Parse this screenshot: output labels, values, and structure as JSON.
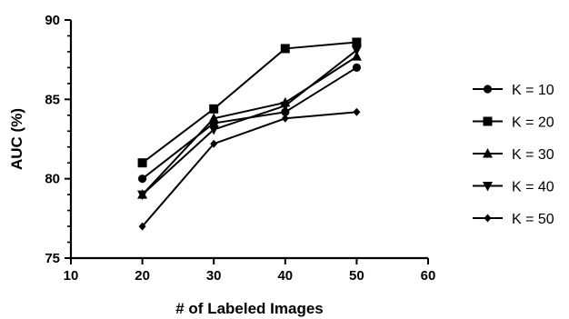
{
  "chart_data": {
    "type": "line",
    "xlabel": "# of Labeled Images",
    "ylabel": "AUC (%)",
    "xlim": [
      10,
      60
    ],
    "ylim": [
      75,
      90
    ],
    "xticks": [
      "10",
      "20",
      "30",
      "40",
      "50",
      "60"
    ],
    "yticks": [
      "75",
      "80",
      "85",
      "90"
    ],
    "x": [
      20,
      30,
      40,
      50
    ],
    "grid": false,
    "legend_position": "right",
    "series": [
      {
        "name": "K = 10",
        "marker": "circle",
        "values": [
          80.0,
          83.5,
          84.2,
          87.0
        ]
      },
      {
        "name": "K = 20",
        "marker": "square",
        "values": [
          81.0,
          84.4,
          88.2,
          88.6
        ]
      },
      {
        "name": "K = 30",
        "marker": "triangle-up",
        "values": [
          79.0,
          83.8,
          84.8,
          87.7
        ]
      },
      {
        "name": "K = 40",
        "marker": "triangle-down",
        "values": [
          79.0,
          83.1,
          84.6,
          88.1
        ]
      },
      {
        "name": "K = 50",
        "marker": "diamond",
        "values": [
          77.0,
          82.2,
          83.8,
          84.2
        ]
      }
    ]
  }
}
